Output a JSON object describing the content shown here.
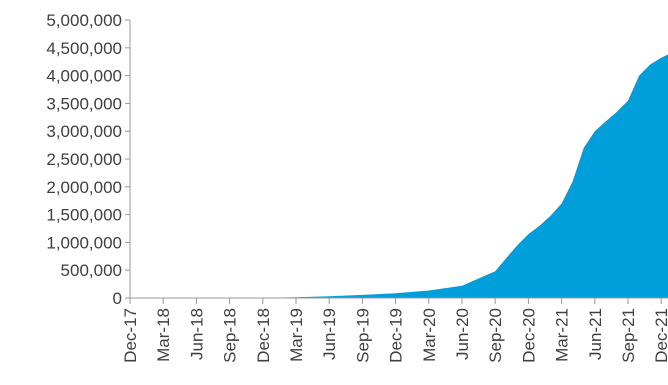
{
  "chart_data": {
    "type": "area",
    "title": "",
    "xlabel": "",
    "ylabel": "",
    "grid": false,
    "legend": "none",
    "ylim": [
      0,
      5000000
    ],
    "y_ticks": [
      {
        "value": 0,
        "label": "0"
      },
      {
        "value": 500000,
        "label": "500,000"
      },
      {
        "value": 1000000,
        "label": "1,000,000"
      },
      {
        "value": 1500000,
        "label": "1,500,000"
      },
      {
        "value": 2000000,
        "label": "2,000,000"
      },
      {
        "value": 2500000,
        "label": "2,500,000"
      },
      {
        "value": 3000000,
        "label": "3,000,000"
      },
      {
        "value": 3500000,
        "label": "3,500,000"
      },
      {
        "value": 4000000,
        "label": "4,000,000"
      },
      {
        "value": 4500000,
        "label": "4,500,000"
      },
      {
        "value": 5000000,
        "label": "5,000,000"
      }
    ],
    "x_ticks": [
      "Dec-17",
      "Mar-18",
      "Jun-18",
      "Sep-18",
      "Dec-18",
      "Mar-19",
      "Jun-19",
      "Sep-19",
      "Dec-19",
      "Mar-20",
      "Jun-20",
      "Sep-20",
      "Dec-20",
      "Mar-21",
      "Jun-21",
      "Sep-21",
      "Dec-21"
    ],
    "series": [
      {
        "color": "#009fdb",
        "points": [
          {
            "x": "Dec-17",
            "y": 0
          },
          {
            "x": "Mar-18",
            "y": 0
          },
          {
            "x": "Jun-18",
            "y": 0
          },
          {
            "x": "Sep-18",
            "y": 0
          },
          {
            "x": "Dec-18",
            "y": 5000
          },
          {
            "x": "Mar-19",
            "y": 15000
          },
          {
            "x": "Jun-19",
            "y": 30000
          },
          {
            "x": "Sep-19",
            "y": 55000
          },
          {
            "x": "Dec-19",
            "y": 85000
          },
          {
            "x": "Mar-20",
            "y": 135000
          },
          {
            "x": "Jun-20",
            "y": 220000
          },
          {
            "x": "Sep-20",
            "y": 480000
          },
          {
            "x": "Oct-20",
            "y": 720000
          },
          {
            "x": "Nov-20",
            "y": 950000
          },
          {
            "x": "Dec-20",
            "y": 1150000
          },
          {
            "x": "Jan-21",
            "y": 1300000
          },
          {
            "x": "Feb-21",
            "y": 1480000
          },
          {
            "x": "Mar-21",
            "y": 1700000
          },
          {
            "x": "Apr-21",
            "y": 2100000
          },
          {
            "x": "May-21",
            "y": 2700000
          },
          {
            "x": "Jun-21",
            "y": 3000000
          },
          {
            "x": "Jul-21",
            "y": 3180000
          },
          {
            "x": "Aug-21",
            "y": 3350000
          },
          {
            "x": "Sep-21",
            "y": 3550000
          },
          {
            "x": "Oct-21",
            "y": 4000000
          },
          {
            "x": "Nov-21",
            "y": 4200000
          },
          {
            "x": "Dec-21",
            "y": 4320000
          },
          {
            "x": "Jan-22",
            "y": 4380000
          }
        ]
      }
    ]
  }
}
